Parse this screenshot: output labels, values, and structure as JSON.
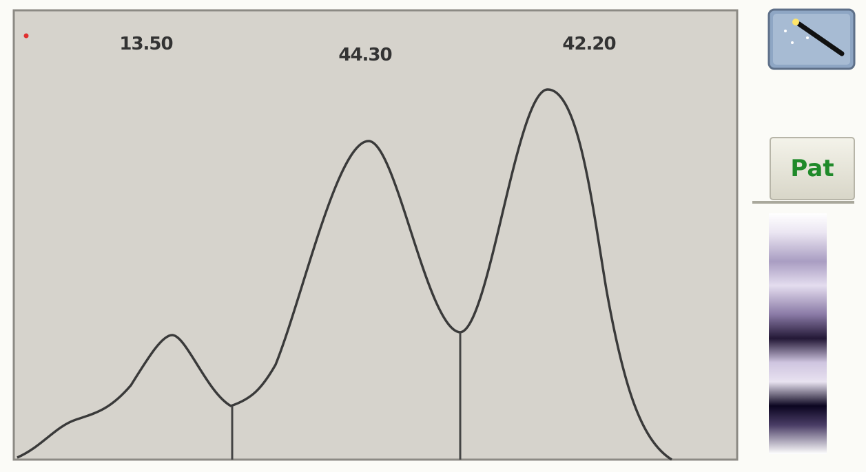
{
  "fractions": [
    "13.50",
    "44.30",
    "42.20"
  ],
  "buttons": {
    "pattern": "Pat"
  }
}
